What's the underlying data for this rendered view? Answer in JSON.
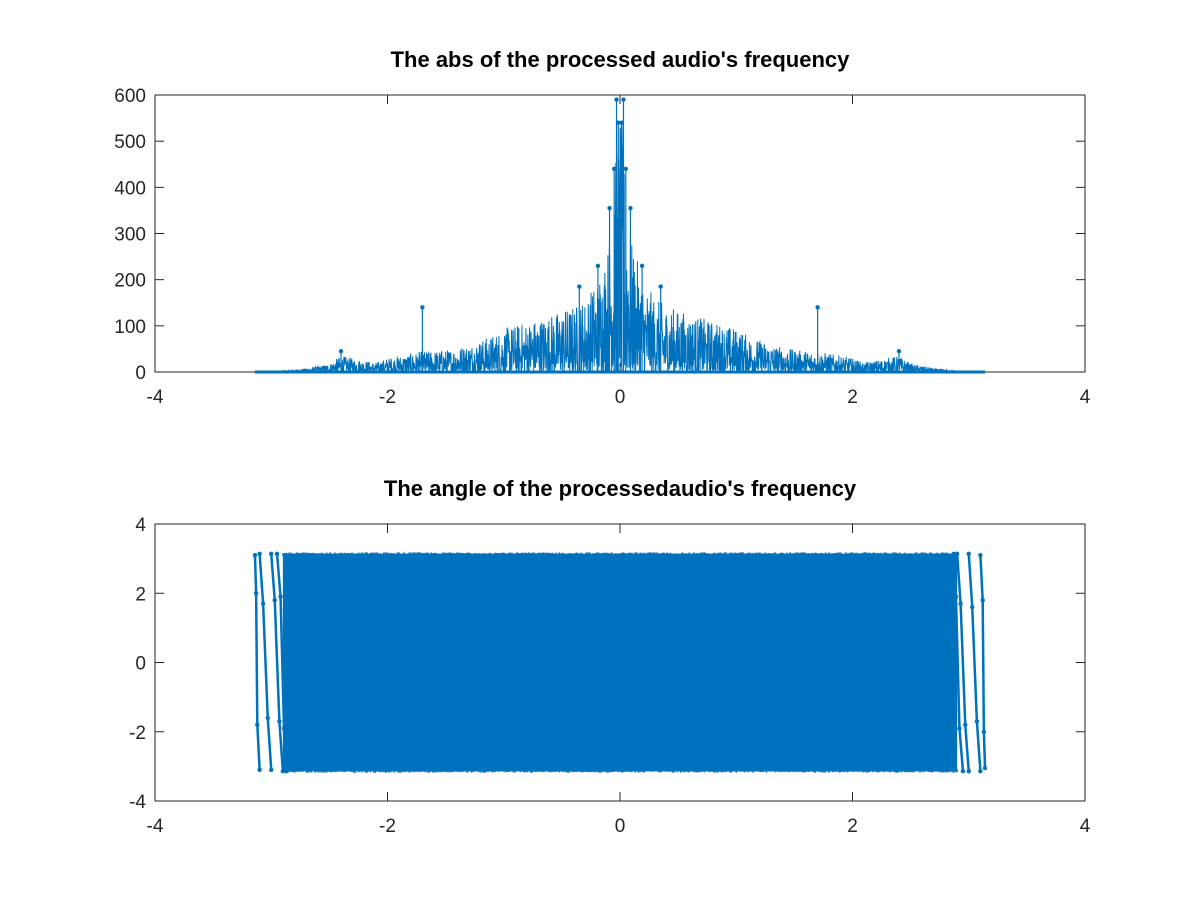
{
  "chart_data": [
    {
      "type": "line",
      "title": "The abs of the processed audio's frequency",
      "xlabel": "",
      "ylabel": "",
      "xlim": [
        -4,
        4
      ],
      "ylim": [
        0,
        600
      ],
      "x_ticks": [
        "-4",
        "-2",
        "0",
        "2",
        "4"
      ],
      "y_ticks": [
        "0",
        "100",
        "200",
        "300",
        "400",
        "500",
        "600"
      ],
      "grid": false,
      "legend": "none",
      "color": "#0072bd",
      "signal_range": [
        -3.1416,
        3.1416
      ],
      "envelope": [
        [
          -3.14,
          1
        ],
        [
          -2.9,
          2
        ],
        [
          -2.7,
          8
        ],
        [
          -2.5,
          18
        ],
        [
          -2.4,
          35
        ],
        [
          -2.3,
          30
        ],
        [
          -2.2,
          25
        ],
        [
          -2.1,
          20
        ],
        [
          -2.0,
          30
        ],
        [
          -1.8,
          40
        ],
        [
          -1.7,
          45
        ],
        [
          -1.5,
          48
        ],
        [
          -1.3,
          60
        ],
        [
          -1.1,
          80
        ],
        [
          -1.0,
          95
        ],
        [
          -0.8,
          110
        ],
        [
          -0.6,
          125
        ],
        [
          -0.4,
          145
        ],
        [
          -0.3,
          160
        ],
        [
          -0.2,
          200
        ],
        [
          -0.1,
          280
        ],
        [
          -0.05,
          420
        ],
        [
          0,
          590
        ],
        [
          0.05,
          420
        ],
        [
          0.1,
          280
        ],
        [
          0.2,
          200
        ],
        [
          0.3,
          160
        ],
        [
          0.4,
          145
        ],
        [
          0.6,
          125
        ],
        [
          0.8,
          110
        ],
        [
          1.0,
          95
        ],
        [
          1.1,
          80
        ],
        [
          1.3,
          60
        ],
        [
          1.5,
          48
        ],
        [
          1.7,
          45
        ],
        [
          1.8,
          40
        ],
        [
          2.0,
          30
        ],
        [
          2.1,
          20
        ],
        [
          2.2,
          25
        ],
        [
          2.3,
          30
        ],
        [
          2.4,
          35
        ],
        [
          2.5,
          18
        ],
        [
          2.7,
          8
        ],
        [
          2.9,
          2
        ],
        [
          3.14,
          1
        ]
      ],
      "peaks": [
        {
          "x": -0.03,
          "y": 590
        },
        {
          "x": 0.03,
          "y": 590
        },
        {
          "x": -0.015,
          "y": 540
        },
        {
          "x": 0.015,
          "y": 540
        },
        {
          "x": -0.09,
          "y": 355
        },
        {
          "x": 0.09,
          "y": 355
        },
        {
          "x": -0.05,
          "y": 440
        },
        {
          "x": 0.05,
          "y": 440
        },
        {
          "x": -0.19,
          "y": 230
        },
        {
          "x": 0.19,
          "y": 230
        },
        {
          "x": -0.35,
          "y": 185
        },
        {
          "x": 0.35,
          "y": 185
        },
        {
          "x": -1.7,
          "y": 140
        },
        {
          "x": 1.7,
          "y": 140
        },
        {
          "x": -2.4,
          "y": 45
        },
        {
          "x": 2.4,
          "y": 45
        }
      ]
    },
    {
      "type": "line",
      "title": "The angle of the processedaudio's frequency",
      "xlabel": "",
      "ylabel": "",
      "xlim": [
        -4,
        4
      ],
      "ylim": [
        -4,
        4
      ],
      "x_ticks": [
        "-4",
        "-2",
        "0",
        "2",
        "4"
      ],
      "y_ticks": [
        "-4",
        "-2",
        "0",
        "2",
        "4"
      ],
      "grid": false,
      "legend": "none",
      "color": "#0072bd",
      "dense_band": {
        "x": [
          -2.9,
          2.9
        ],
        "y": [
          -3.1416,
          3.1416
        ]
      },
      "edge_segments": [
        [
          [
            -3.14,
            3.1
          ],
          [
            -3.13,
            2.0
          ],
          [
            -3.12,
            -1.8
          ],
          [
            -3.1,
            -3.1
          ]
        ],
        [
          [
            -3.1,
            3.14
          ],
          [
            -3.07,
            1.7
          ],
          [
            -3.03,
            -1.6
          ],
          [
            -3.0,
            -3.1
          ]
        ],
        [
          [
            -3.0,
            3.14
          ],
          [
            -2.97,
            1.8
          ],
          [
            -2.93,
            -1.7
          ],
          [
            -2.9,
            -3.14
          ]
        ],
        [
          [
            -2.95,
            3.14
          ],
          [
            -2.92,
            1.9
          ],
          [
            -2.89,
            -1.9
          ],
          [
            -2.87,
            -3.14
          ]
        ],
        [
          [
            2.87,
            3.14
          ],
          [
            2.89,
            1.9
          ],
          [
            2.92,
            -1.9
          ],
          [
            2.95,
            -3.14
          ]
        ],
        [
          [
            2.9,
            3.14
          ],
          [
            2.93,
            1.7
          ],
          [
            2.97,
            -1.8
          ],
          [
            3.0,
            -3.14
          ]
        ],
        [
          [
            3.0,
            3.14
          ],
          [
            3.03,
            1.6
          ],
          [
            3.07,
            -1.7
          ],
          [
            3.1,
            -3.14
          ]
        ],
        [
          [
            3.1,
            3.1
          ],
          [
            3.12,
            1.8
          ],
          [
            3.13,
            -2.0
          ],
          [
            3.14,
            -3.05
          ]
        ]
      ]
    }
  ]
}
